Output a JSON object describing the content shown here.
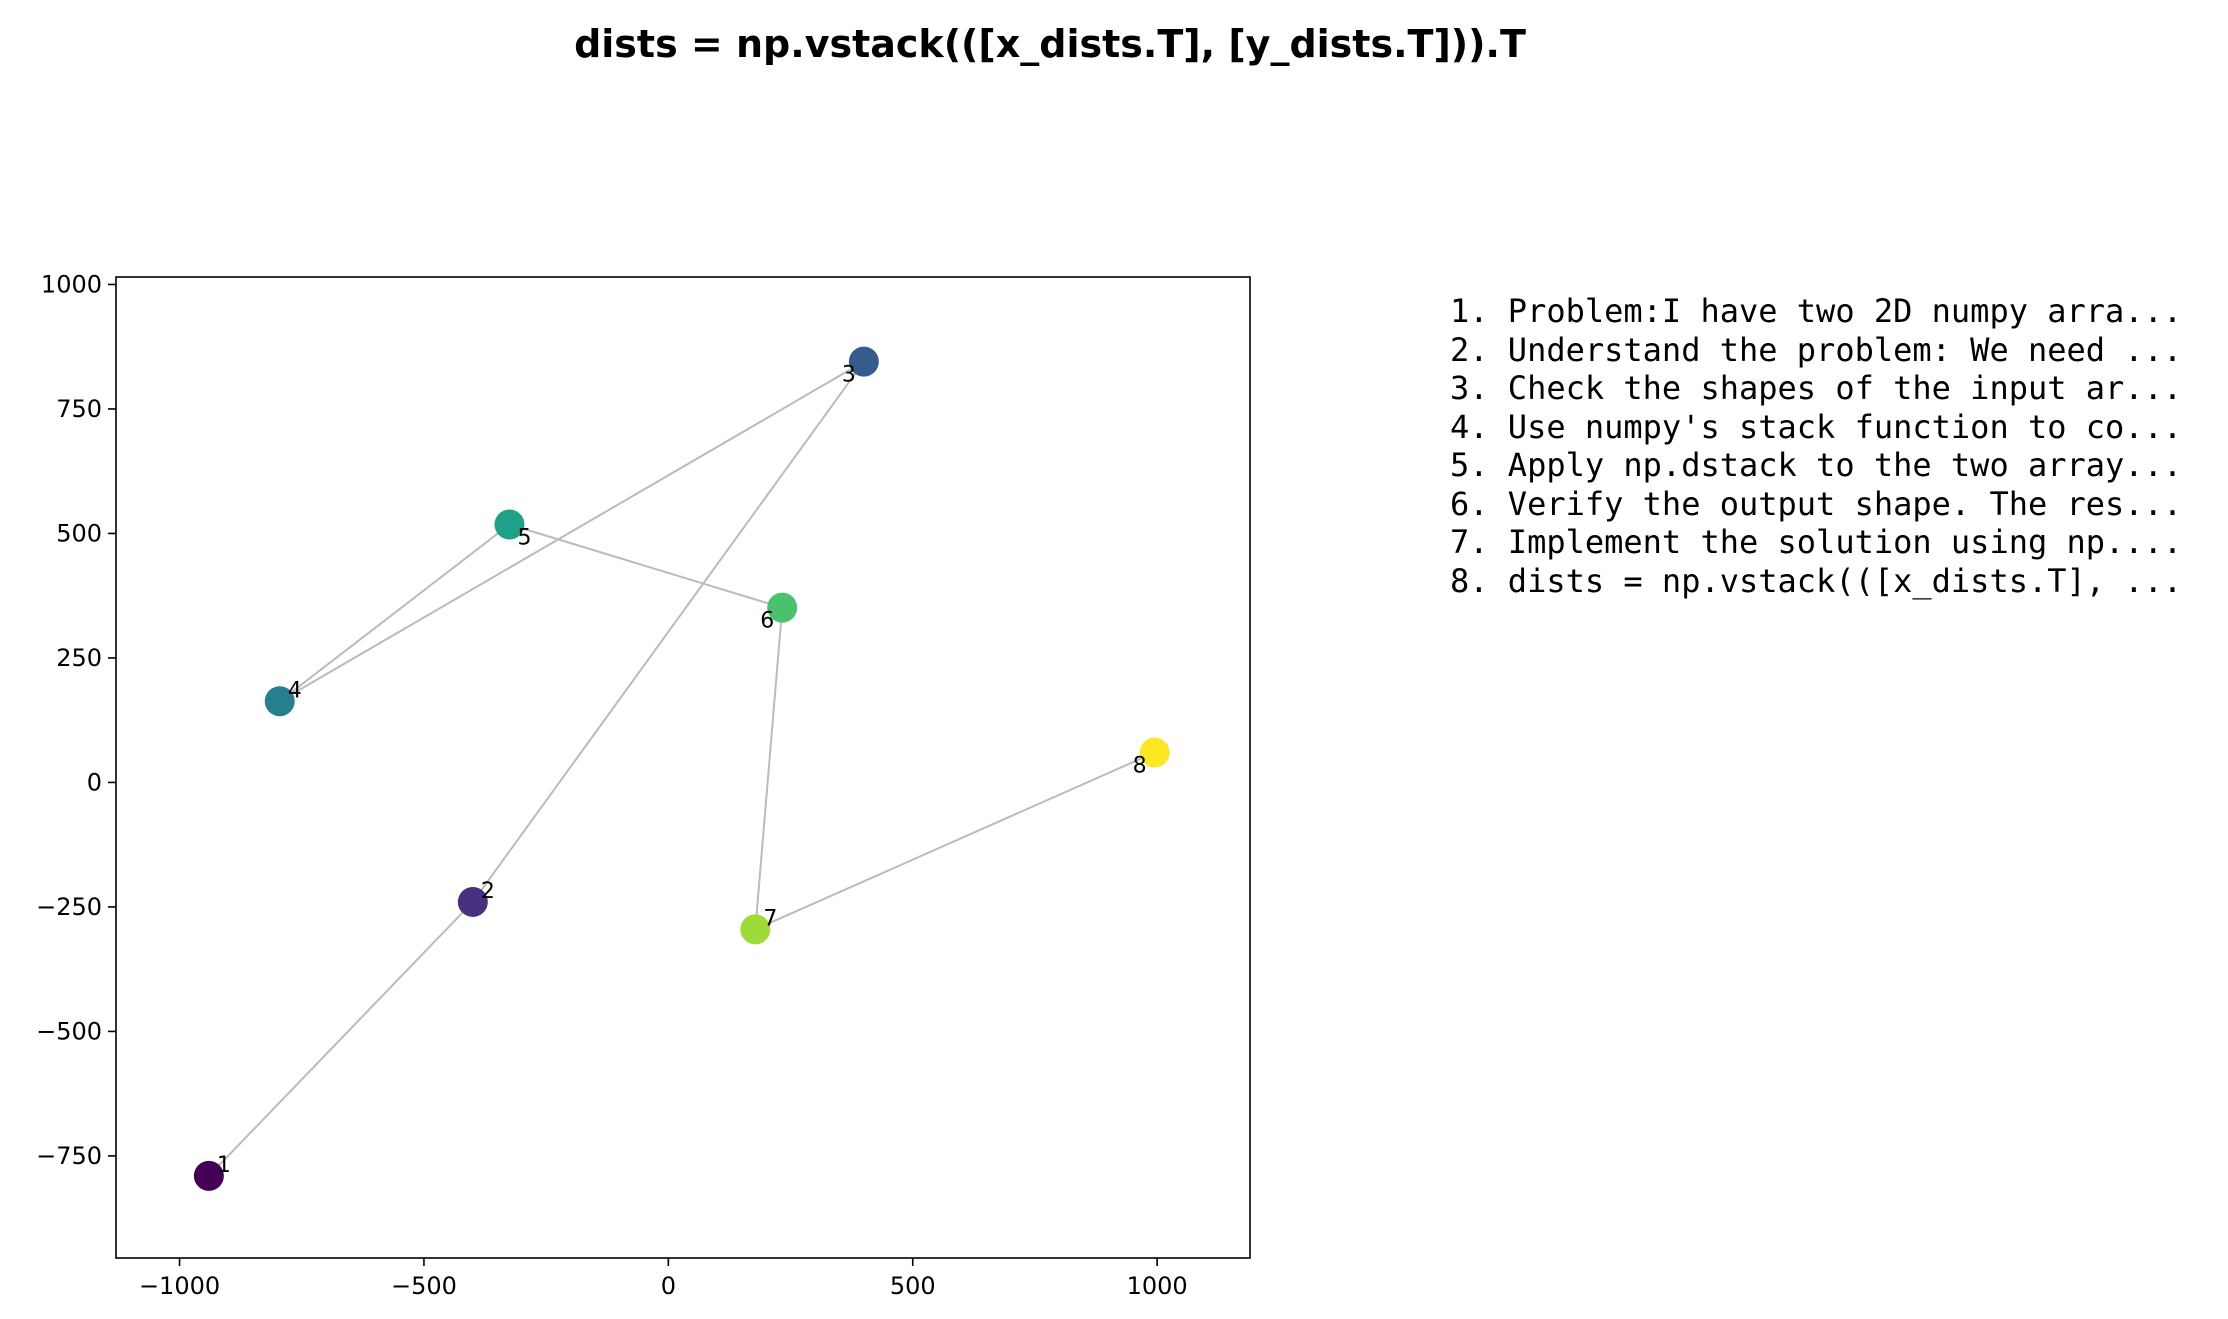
{
  "title": "dists = np.vstack(([x_dists.T], [y_dists.T])).T",
  "chart_data": {
    "type": "scatter",
    "title": "dists = np.vstack(([x_dists.T], [y_dists.T])).T",
    "xlim": [
      -1130,
      1190
    ],
    "ylim": [
      -955,
      1015
    ],
    "xticks": [
      -1000,
      -500,
      0,
      500,
      1000
    ],
    "yticks": [
      -750,
      -500,
      -250,
      0,
      250,
      500,
      750,
      1000
    ],
    "grid": false,
    "connect_in_order": true,
    "line_color": "#bbbbbb",
    "colormap": "viridis",
    "points": [
      {
        "label": "1",
        "x": -940,
        "y": -790,
        "color": "#440154"
      },
      {
        "label": "2",
        "x": -400,
        "y": -240,
        "color": "#46327e"
      },
      {
        "label": "3",
        "x": 400,
        "y": 845,
        "color": "#365c8d"
      },
      {
        "label": "4",
        "x": -795,
        "y": 163,
        "color": "#277f8e"
      },
      {
        "label": "5",
        "x": -325,
        "y": 518,
        "color": "#1fa187"
      },
      {
        "label": "6",
        "x": 233,
        "y": 351,
        "color": "#4ac16d"
      },
      {
        "label": "7",
        "x": 178,
        "y": -295,
        "color": "#a0da39"
      },
      {
        "label": "8",
        "x": 995,
        "y": 60,
        "color": "#fde725"
      }
    ]
  },
  "steps": [
    "1. Problem:I have two 2D numpy arra...",
    "2. Understand the problem: We need ...",
    "3. Check the shapes of the input ar...",
    "4. Use numpy's stack function to co...",
    "5. Apply np.dstack to the two array...",
    "6. Verify the output shape. The res...",
    "7. Implement the solution using np....",
    "8. dists = np.vstack(([x_dists.T], ..."
  ]
}
